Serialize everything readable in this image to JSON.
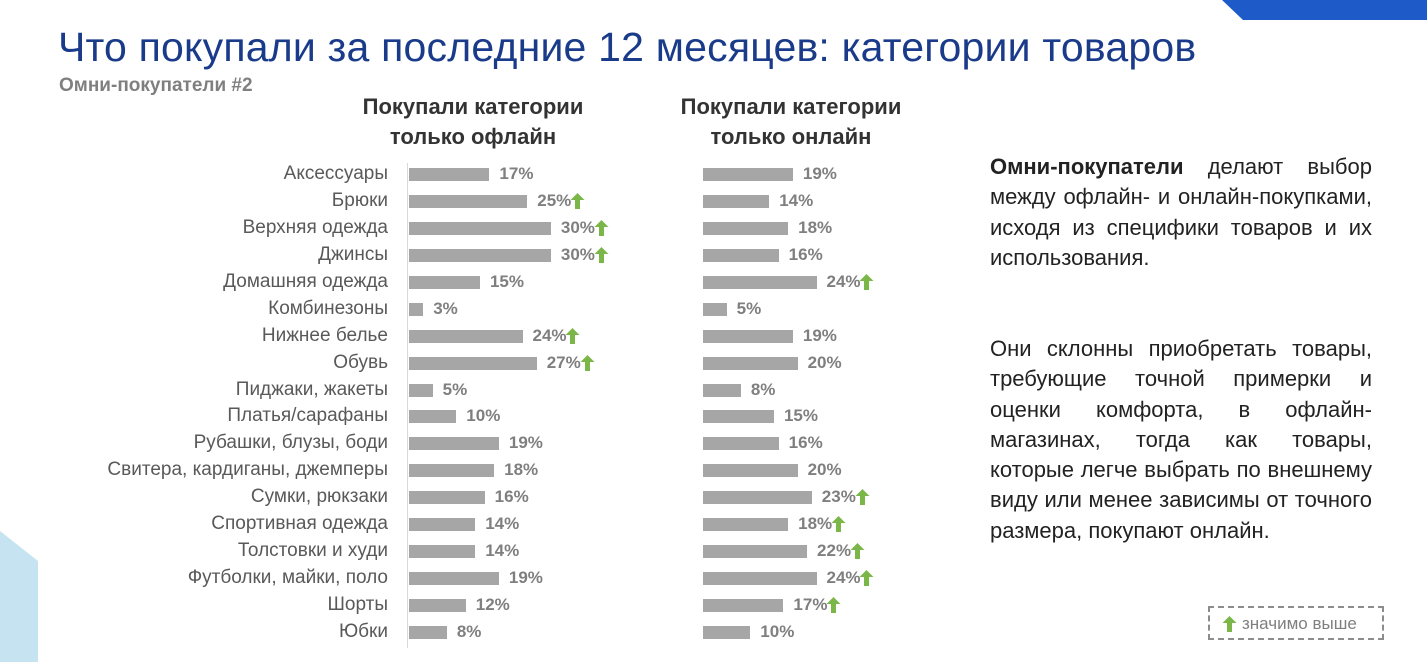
{
  "title": "Что покупали за последние 12 месяцев: категории товаров",
  "subtitle": "Омни-покупатели #2",
  "panels": {
    "offline_title": "Покупали категории\nтолько офлайн",
    "online_title": "Покупали категории\nтолько онлайн"
  },
  "description": {
    "p1_bold": "Омни-покупатели",
    "p1_rest": " делают выбор между офлайн- и онлайн-покупками, исходя из специфики товаров и их использования.",
    "p2": "Они склонны приобретать товары, требующие точной примерки и оценки комфорта, в офлайн- магазинах, тогда как товары, которые легче выбрать по внешнему виду или менее зависимы от точного размера, покупают онлайн."
  },
  "legend": {
    "label": "значимо выше",
    "icon": "up-arrow-icon",
    "arrow_color": "#7ab648"
  },
  "colors": {
    "bar": "#a6a6a6",
    "title": "#1a3a8a",
    "accent": "#1f5bc8"
  },
  "chart_data": [
    {
      "type": "bar",
      "orientation": "horizontal",
      "title": "Покупали категории\nтолько офлайн",
      "unit": "%",
      "categories": [
        "Аксессуары",
        "Брюки",
        "Верхняя одежда",
        "Джинсы",
        "Домашняя одежда",
        "Комбинезоны",
        "Нижнее белье",
        "Обувь",
        "Пиджаки, жакеты",
        "Платья/сарафаны",
        "Рубашки, блузы, боди",
        "Свитера, кардиганы, джемперы",
        "Сумки, рюкзаки",
        "Спортивная одежда",
        "Толстовки и худи",
        "Футболки, майки, поло",
        "Шорты",
        "Юбки"
      ],
      "values": [
        17,
        25,
        30,
        30,
        15,
        3,
        24,
        27,
        5,
        10,
        19,
        18,
        16,
        14,
        14,
        19,
        12,
        8
      ],
      "labels": [
        "17%",
        "25%",
        "30%",
        "30%",
        "15%",
        "3%",
        "24%",
        "27%",
        "5%",
        "10%",
        "19%",
        "18%",
        "16%",
        "14%",
        "14%",
        "19%",
        "12%",
        "8%"
      ],
      "significantly_higher": [
        false,
        true,
        true,
        true,
        false,
        false,
        true,
        true,
        false,
        false,
        false,
        false,
        false,
        false,
        false,
        false,
        false,
        false
      ]
    },
    {
      "type": "bar",
      "orientation": "horizontal",
      "title": "Покупали категории\nтолько онлайн",
      "unit": "%",
      "categories": [
        "Аксессуары",
        "Брюки",
        "Верхняя одежда",
        "Джинсы",
        "Домашняя одежда",
        "Комбинезоны",
        "Нижнее белье",
        "Обувь",
        "Пиджаки, жакеты",
        "Платья/сарафаны",
        "Рубашки, блузы, боди",
        "Свитера, кардиганы, джемперы",
        "Сумки, рюкзаки",
        "Спортивная одежда",
        "Толстовки и худи",
        "Футболки, майки, поло",
        "Шорты",
        "Юбки"
      ],
      "values": [
        19,
        14,
        18,
        16,
        24,
        5,
        19,
        20,
        8,
        15,
        16,
        20,
        23,
        18,
        22,
        24,
        17,
        10
      ],
      "labels": [
        "19%",
        "14%",
        "18%",
        "16%",
        "24%",
        "5%",
        "19%",
        "20%",
        "8%",
        "15%",
        "16%",
        "20%",
        "23%",
        "18%",
        "22%",
        "24%",
        "17%",
        "10%"
      ],
      "significantly_higher": [
        false,
        false,
        false,
        false,
        true,
        false,
        false,
        false,
        false,
        false,
        false,
        false,
        true,
        true,
        true,
        true,
        true,
        false
      ]
    }
  ]
}
